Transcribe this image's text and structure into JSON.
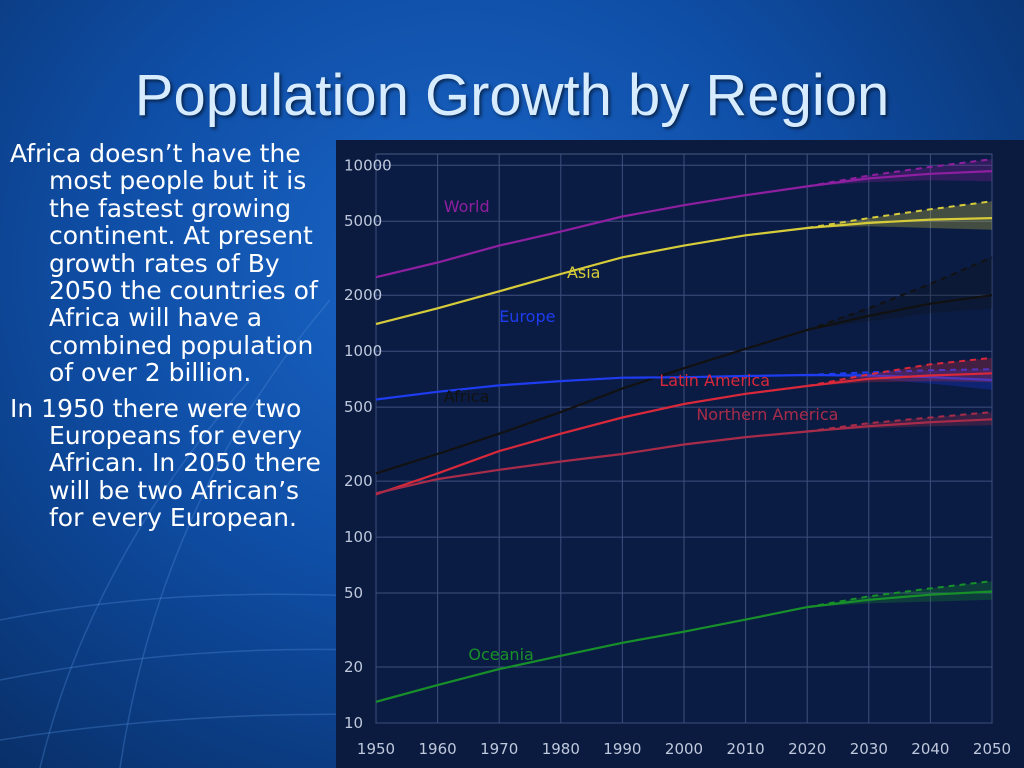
{
  "slide": {
    "title": "Population Growth by Region",
    "bullets": [
      "Africa doesn’t have the most people but it is the fastest growing continent. At present growth rates of By 2050 the countries of Africa will have a combined population of over 2 billion.",
      "In 1950 there were two Europeans for every African. In 2050 there will be two African’s for every European."
    ]
  },
  "chart_data": {
    "type": "line",
    "title": "",
    "xlabel": "",
    "ylabel": "",
    "log_y": true,
    "ylim": [
      10,
      11500
    ],
    "xlim": [
      1950,
      2050
    ],
    "grid": true,
    "y_ticks": [
      10,
      20,
      50,
      100,
      200,
      500,
      1000,
      2000,
      5000,
      10000
    ],
    "x_ticks": [
      1950,
      1960,
      1970,
      1980,
      1990,
      2000,
      2010,
      2020,
      2030,
      2040,
      2050
    ],
    "projection_start": 2020,
    "series": [
      {
        "name": "World",
        "color": "#8e1fa0",
        "x": [
          1950,
          1960,
          1970,
          1980,
          1990,
          2000,
          2010,
          2020,
          2030,
          2040,
          2050
        ],
        "y": [
          2500,
          3000,
          3700,
          4400,
          5300,
          6100,
          6900,
          7700,
          8500,
          9000,
          9300
        ],
        "proj_high": [
          7700,
          8800,
          9800,
          10800
        ],
        "band_low": [
          7700,
          8100,
          8300,
          8200
        ]
      },
      {
        "name": "Asia",
        "color": "#d6cc3a",
        "x": [
          1950,
          1960,
          1970,
          1980,
          1990,
          2000,
          2010,
          2020,
          2030,
          2040,
          2050
        ],
        "y": [
          1400,
          1700,
          2100,
          2600,
          3200,
          3700,
          4200,
          4600,
          4900,
          5100,
          5200
        ],
        "proj_high": [
          4600,
          5200,
          5800,
          6400
        ],
        "band_low": [
          4600,
          4700,
          4600,
          4500
        ]
      },
      {
        "name": "Africa",
        "color": "#111111",
        "x": [
          1950,
          1960,
          1970,
          1980,
          1990,
          2000,
          2010,
          2020,
          2030,
          2040,
          2050
        ],
        "y": [
          220,
          280,
          360,
          470,
          630,
          810,
          1030,
          1300,
          1550,
          1800,
          2000
        ],
        "proj_high": [
          1300,
          1700,
          2300,
          3200
        ],
        "band_low": [
          1300,
          1450,
          1600,
          1700
        ]
      },
      {
        "name": "Europe",
        "color": "#1e3cf0",
        "x": [
          1950,
          1960,
          1970,
          1980,
          1990,
          2000,
          2010,
          2020,
          2030,
          2040,
          2050
        ],
        "y": [
          550,
          605,
          655,
          690,
          720,
          725,
          735,
          745,
          740,
          725,
          700
        ],
        "proj_high": [
          745,
          770,
          790,
          800
        ],
        "band_low": [
          745,
          710,
          670,
          620
        ]
      },
      {
        "name": "Latin America",
        "color": "#d8283a",
        "x": [
          1950,
          1960,
          1970,
          1980,
          1990,
          2000,
          2010,
          2020,
          2030,
          2040,
          2050
        ],
        "y": [
          170,
          220,
          290,
          360,
          440,
          520,
          590,
          650,
          710,
          740,
          760
        ],
        "proj_high": [
          650,
          750,
          850,
          920
        ],
        "band_low": [
          650,
          680,
          690,
          680
        ]
      },
      {
        "name": "Northern America",
        "color": "#a82c4a",
        "x": [
          1950,
          1960,
          1970,
          1980,
          1990,
          2000,
          2010,
          2020,
          2030,
          2040,
          2050
        ],
        "y": [
          172,
          205,
          230,
          255,
          280,
          315,
          345,
          370,
          395,
          415,
          430
        ],
        "proj_high": [
          370,
          410,
          440,
          470
        ],
        "band_low": [
          370,
          385,
          395,
          400
        ]
      },
      {
        "name": "Oceania",
        "color": "#18902a",
        "x": [
          1950,
          1960,
          1970,
          1980,
          1990,
          2000,
          2010,
          2020,
          2030,
          2040,
          2050
        ],
        "y": [
          13,
          16,
          19.5,
          23,
          27,
          31,
          36,
          42,
          46,
          49,
          51
        ],
        "proj_high": [
          42,
          48,
          53,
          58
        ],
        "band_low": [
          42,
          44,
          45,
          46
        ]
      }
    ]
  }
}
